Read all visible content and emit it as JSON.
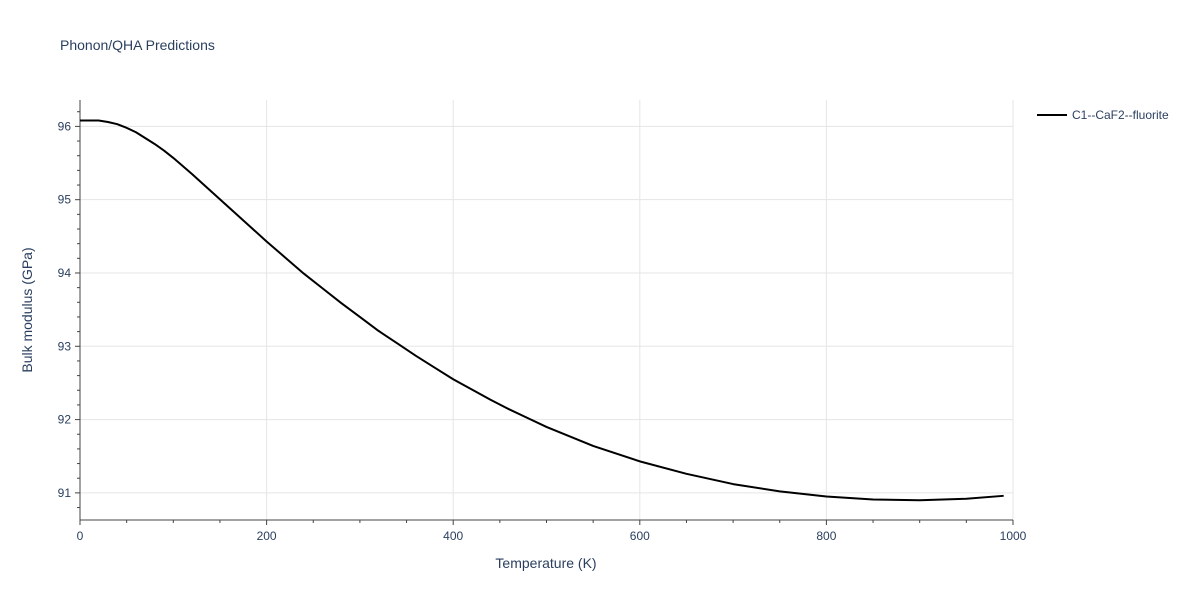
{
  "chart_data": {
    "type": "line",
    "title": "Phonon/QHA Predictions",
    "xlabel": "Temperature (K)",
    "ylabel": "Bulk modulus (GPa)",
    "xlim": [
      0,
      1000
    ],
    "ylim": [
      90.63,
      96.36
    ],
    "x_ticks": [
      0,
      200,
      400,
      600,
      800,
      1000
    ],
    "y_ticks": [
      91,
      92,
      93,
      94,
      95,
      96
    ],
    "x_tick_labels": [
      "0",
      "200",
      "400",
      "600",
      "800",
      "1000"
    ],
    "y_tick_labels": [
      "91",
      "92",
      "93",
      "94",
      "95",
      "96"
    ],
    "grid": true,
    "legend_position": "top-right",
    "series": [
      {
        "name": "C1--CaF2--fluorite",
        "color": "#000000",
        "x": [
          0,
          10,
          20,
          30,
          40,
          50,
          60,
          70,
          80,
          90,
          100,
          120,
          140,
          160,
          180,
          200,
          220,
          240,
          260,
          280,
          300,
          320,
          340,
          360,
          380,
          400,
          420,
          440,
          460,
          480,
          500,
          550,
          600,
          650,
          700,
          750,
          800,
          850,
          900,
          950,
          990
        ],
        "y": [
          96.08,
          96.08,
          96.08,
          96.06,
          96.03,
          95.98,
          95.92,
          95.84,
          95.76,
          95.67,
          95.57,
          95.35,
          95.12,
          94.89,
          94.66,
          94.43,
          94.21,
          93.99,
          93.79,
          93.59,
          93.4,
          93.21,
          93.04,
          92.87,
          92.71,
          92.55,
          92.41,
          92.27,
          92.14,
          92.02,
          91.9,
          91.64,
          91.43,
          91.26,
          91.12,
          91.02,
          90.95,
          90.91,
          90.9,
          90.92,
          90.96
        ]
      }
    ]
  }
}
